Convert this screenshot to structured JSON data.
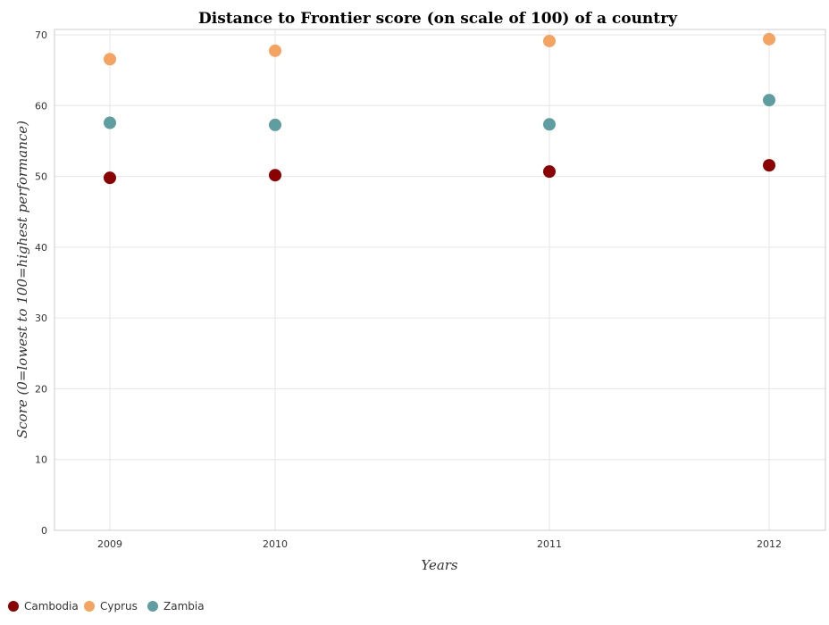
{
  "chart_data": {
    "type": "scatter",
    "title": "Distance to Frontier score (on scale of 100) of a country",
    "xlabel": "Years",
    "ylabel": "Score (0=lowest to 100=highest performance)",
    "categories": [
      "2009",
      "2010",
      "2011",
      "2012"
    ],
    "ylim": [
      0,
      70
    ],
    "yticks": [
      0,
      10,
      20,
      30,
      40,
      50,
      60,
      70
    ],
    "grid": true,
    "legend_position": "bottom-left",
    "series": [
      {
        "name": "Cambodia",
        "color": "#8b0000",
        "values": [
          49.8,
          50.17,
          50.68,
          51.57
        ]
      },
      {
        "name": "Cyprus",
        "color": "#f4a460",
        "values": [
          66.56,
          67.75,
          69.12,
          69.39
        ]
      },
      {
        "name": "Zambia",
        "color": "#5f9ea0",
        "values": [
          57.57,
          57.27,
          57.35,
          60.77
        ]
      }
    ]
  }
}
